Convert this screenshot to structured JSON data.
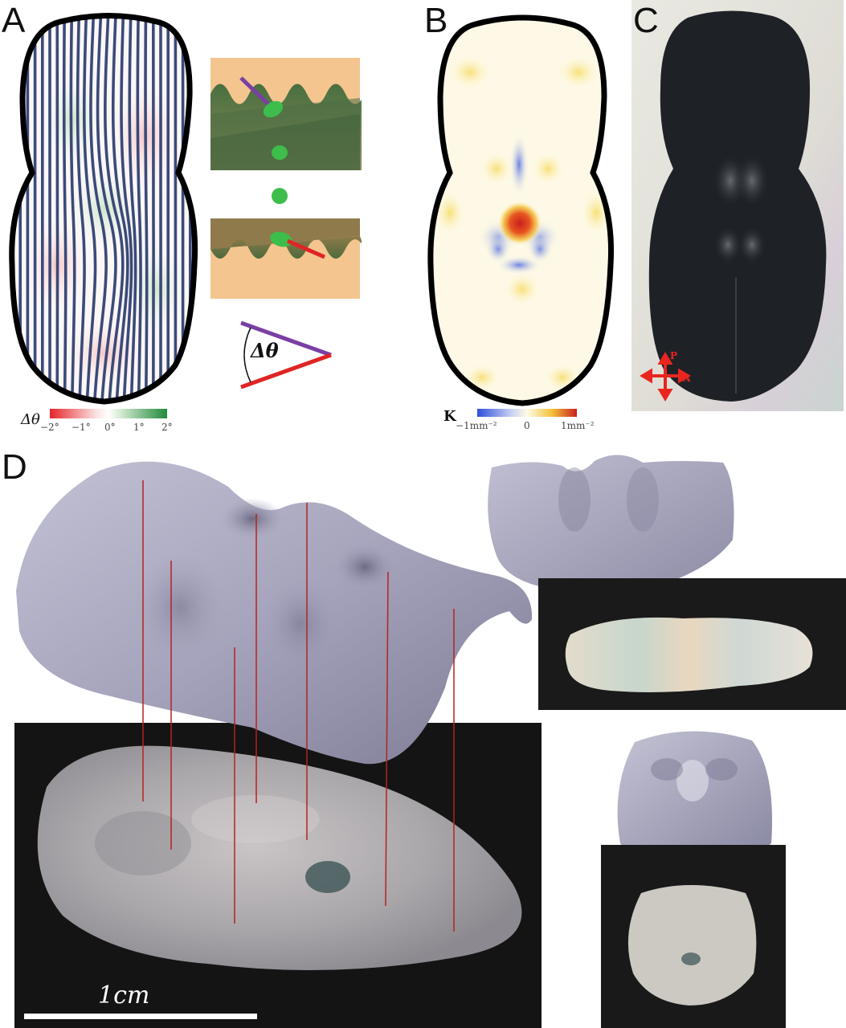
{
  "panels": {
    "a": {
      "letter": "A"
    },
    "b": {
      "letter": "B"
    },
    "c": {
      "letter": "C"
    },
    "d": {
      "letter": "D"
    }
  },
  "panel_a": {
    "angle_symbol": "Δθ",
    "inset_angle_label": "Δθ",
    "colorbar": {
      "symbol": "Δθ",
      "ticks": [
        "−2°",
        "−1°",
        "0°",
        "1°",
        "2°"
      ],
      "colors": [
        "#e4262b",
        "#ffffff",
        "#1f8a3a"
      ]
    },
    "stripe_color": "#3b4a78",
    "outline_color": "#000000"
  },
  "panel_b": {
    "colorbar": {
      "symbol": "K",
      "ticks": [
        "−1mm⁻²",
        "0",
        "1mm⁻²"
      ],
      "colors": [
        "#2f4fd8",
        "#fffbe6",
        "#f3c23a",
        "#c8201f"
      ]
    }
  },
  "panel_c": {
    "polarizer_labels": {
      "p": "P",
      "a": "A"
    },
    "arrow_color": "#e8261e"
  },
  "panel_d": {
    "scale_label": "1cm",
    "surface_color": "#a6a6bd",
    "guide_line_color": "#b52222"
  }
}
